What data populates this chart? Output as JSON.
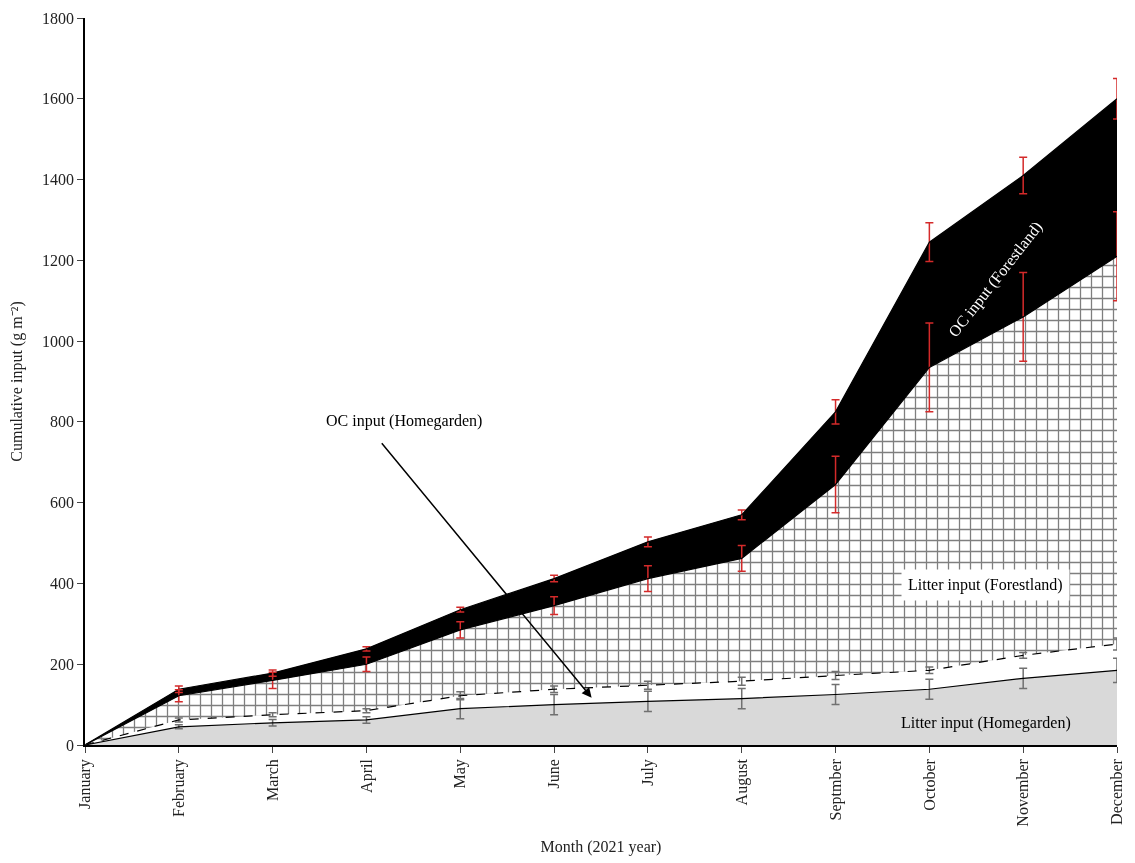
{
  "chart_data": {
    "type": "area",
    "xlabel": "Month (2021 year)",
    "ylabel": "Cumulative input (g m⁻²)",
    "categories": [
      "January",
      "February",
      "March",
      "April",
      "May",
      "June",
      "July",
      "August",
      "Septmber",
      "October",
      "November",
      "December"
    ],
    "series": [
      {
        "name": "Litter input (Homegarden)",
        "color": "#d9d9d9",
        "line_style": "solid",
        "values": [
          0,
          45,
          55,
          62,
          90,
          100,
          108,
          115,
          125,
          138,
          165,
          185
        ],
        "errors": [
          null,
          5,
          8,
          8,
          25,
          25,
          25,
          25,
          25,
          25,
          25,
          30
        ]
      },
      {
        "name": "OC input (Homegarden)",
        "color": "#ffffff",
        "line_style": "dashed",
        "values": [
          0,
          62,
          75,
          85,
          122,
          138,
          148,
          158,
          172,
          185,
          222,
          250
        ],
        "errors": [
          null,
          5,
          5,
          5,
          10,
          8,
          10,
          10,
          10,
          8,
          7,
          15
        ]
      },
      {
        "name": "Litter input (Forestland)",
        "color": "#000000",
        "line_style": "solid",
        "values": [
          0,
          122,
          160,
          200,
          285,
          345,
          412,
          462,
          645,
          935,
          1060,
          1210
        ],
        "errors": [
          null,
          15,
          20,
          18,
          20,
          22,
          32,
          32,
          70,
          110,
          110,
          110
        ]
      },
      {
        "name": "OC input (Forestland)",
        "color": "#000000",
        "line_style": "solid",
        "values": [
          0,
          138,
          178,
          238,
          335,
          412,
          503,
          570,
          825,
          1245,
          1410,
          1600
        ],
        "errors": [
          null,
          8,
          8,
          5,
          6,
          8,
          12,
          12,
          30,
          48,
          45,
          50
        ]
      }
    ],
    "ylim": [
      0,
      1800
    ],
    "yticks": [
      0,
      200,
      400,
      600,
      800,
      1000,
      1200,
      1400,
      1600,
      1800
    ],
    "legend": false
  }
}
